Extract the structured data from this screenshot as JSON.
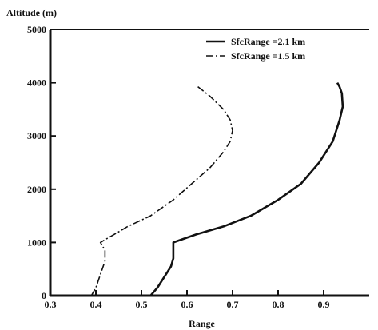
{
  "chart_data": {
    "type": "line",
    "xlabel": "Range",
    "ylabel": "Altitude (m)",
    "xlim": [
      0.3,
      1.0
    ],
    "ylim": [
      0,
      5000
    ],
    "xticks": [
      0.3,
      0.4,
      0.5,
      0.6,
      0.7,
      0.8,
      0.9
    ],
    "yticks": [
      0,
      1000,
      2000,
      3000,
      4000,
      5000
    ],
    "xtick_labels": [
      "0.3",
      "0.4",
      "0.5",
      "0.6",
      "0.7",
      "0.8",
      "0.9"
    ],
    "ytick_labels": [
      "0",
      "1000",
      "2000",
      "3000",
      "4000",
      "5000"
    ],
    "grid": false,
    "legend_position": "top-right",
    "series": [
      {
        "name": "SfcRange =2.1 km",
        "style": "solid",
        "color": "#111111",
        "x": [
          0.52,
          0.535,
          0.55,
          0.565,
          0.57,
          0.57,
          0.62,
          0.68,
          0.74,
          0.8,
          0.85,
          0.89,
          0.92,
          0.935,
          0.942,
          0.94,
          0.935,
          0.93
        ],
        "y": [
          0,
          150,
          350,
          550,
          700,
          1000,
          1150,
          1300,
          1500,
          1800,
          2100,
          2500,
          2900,
          3300,
          3550,
          3800,
          3920,
          4000
        ]
      },
      {
        "name": "SfcRange =1.5 km",
        "style": "dashdot",
        "color": "#111111",
        "x": [
          0.39,
          0.4,
          0.41,
          0.42,
          0.42,
          0.41,
          0.43,
          0.47,
          0.52,
          0.57,
          0.61,
          0.65,
          0.68,
          0.695,
          0.7,
          0.695,
          0.68,
          0.65,
          0.62
        ],
        "y": [
          0,
          150,
          400,
          650,
          850,
          1000,
          1100,
          1300,
          1500,
          1800,
          2100,
          2400,
          2700,
          2900,
          3100,
          3300,
          3500,
          3750,
          3950
        ]
      }
    ]
  }
}
